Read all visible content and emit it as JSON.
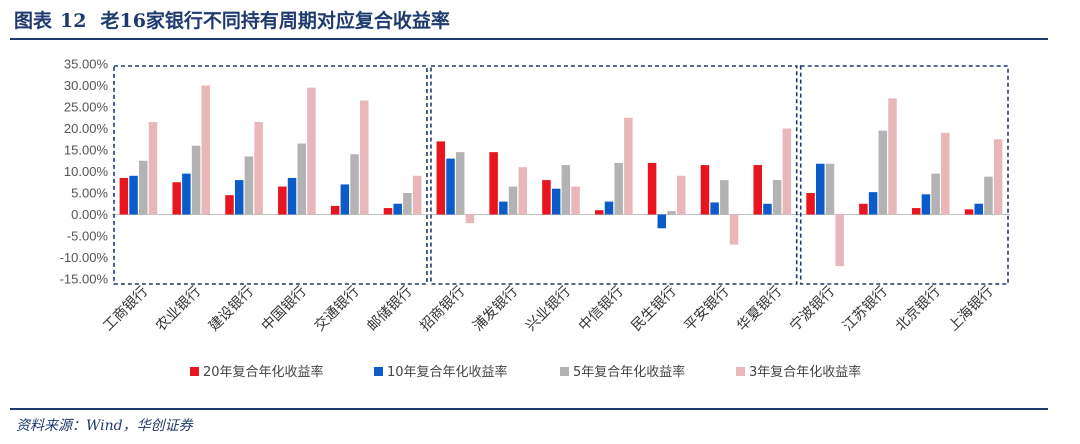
{
  "header": {
    "label": "图表",
    "number": "12",
    "title": "老16家银行不同持有周期对应复合收益率"
  },
  "source": "资料来源：Wind，华创证券",
  "colors": {
    "title": "#1f3a6e",
    "series": [
      "#e8141e",
      "#0b5cc8",
      "#b3b3b3",
      "#e9b7b9"
    ],
    "group_box": "#1f3a6e"
  },
  "chart_data": {
    "type": "bar",
    "categories": [
      "工商银行",
      "农业银行",
      "建设银行",
      "中国银行",
      "交通银行",
      "邮储银行",
      "招商银行",
      "浦发银行",
      "兴业银行",
      "中信银行",
      "民生银行",
      "平安银行",
      "华夏银行",
      "宁波银行",
      "江苏银行",
      "北京银行",
      "上海银行"
    ],
    "series": [
      {
        "name": "20年复合年化收益率",
        "values": [
          8.5,
          7.5,
          4.5,
          6.5,
          2.0,
          1.5,
          17.0,
          14.5,
          8.0,
          1.0,
          12.0,
          11.5,
          11.5,
          5.0,
          2.5,
          1.5,
          1.2
        ]
      },
      {
        "name": "10年复合年化收益率",
        "values": [
          9.0,
          9.5,
          8.0,
          8.5,
          7.0,
          2.5,
          13.0,
          3.0,
          6.0,
          3.0,
          -3.2,
          2.8,
          2.5,
          11.8,
          5.2,
          4.7,
          2.5
        ]
      },
      {
        "name": "5年复合年化收益率",
        "values": [
          12.5,
          16.0,
          13.5,
          16.5,
          14.0,
          5.0,
          14.5,
          6.5,
          11.5,
          12.0,
          0.8,
          8.0,
          8.0,
          11.8,
          19.5,
          9.5,
          8.8
        ]
      },
      {
        "name": "3年复合年化收益率",
        "values": [
          21.5,
          30.0,
          21.5,
          29.5,
          26.5,
          9.0,
          -2.0,
          11.0,
          6.5,
          22.5,
          9.0,
          -7.0,
          20.0,
          -12.0,
          27.0,
          19.0,
          17.5
        ]
      }
    ],
    "ylim": [
      -15,
      35
    ],
    "ytick_step": 5,
    "ytick_labels": [
      "-15.00%",
      "-10.00%",
      "-5.00%",
      "0.00%",
      "5.00%",
      "10.00%",
      "15.00%",
      "20.00%",
      "25.00%",
      "30.00%",
      "35.00%"
    ],
    "groups": [
      {
        "start": 0,
        "end": 5
      },
      {
        "start": 6,
        "end": 12
      },
      {
        "start": 13,
        "end": 16
      }
    ],
    "legend_position": "bottom",
    "grid": false
  }
}
